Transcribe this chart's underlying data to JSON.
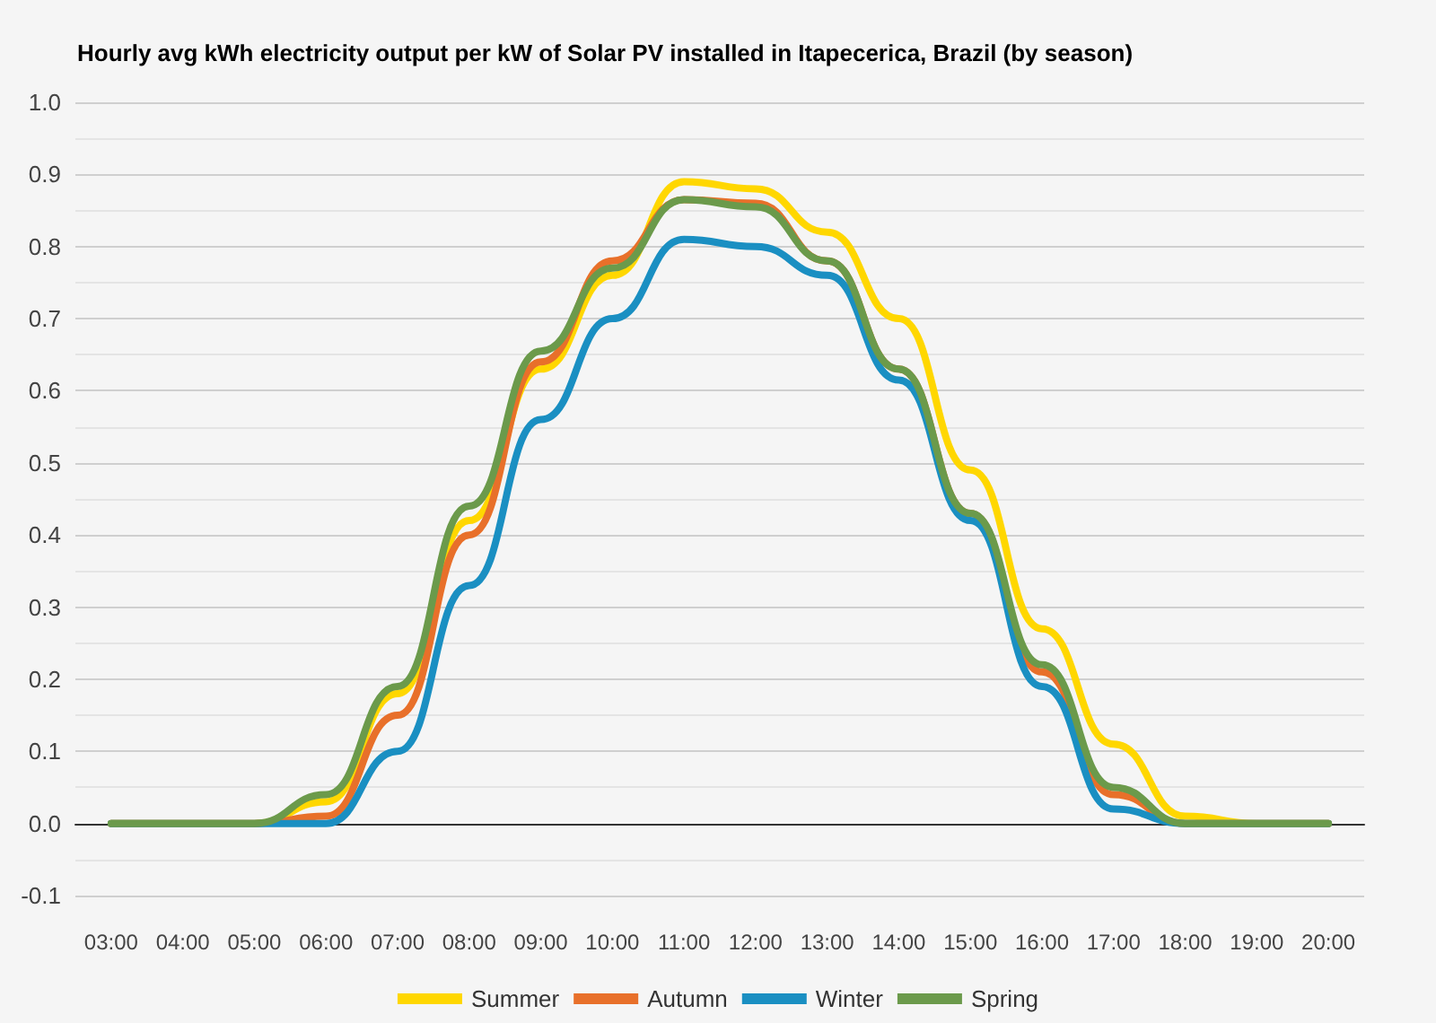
{
  "chart_data": {
    "type": "line",
    "title": "Hourly avg kWh electricity output per kW of Solar PV installed in Itapecerica, Brazil (by season)",
    "categories": [
      "03:00",
      "04:00",
      "05:00",
      "06:00",
      "07:00",
      "08:00",
      "09:00",
      "10:00",
      "11:00",
      "12:00",
      "13:00",
      "14:00",
      "15:00",
      "16:00",
      "17:00",
      "18:00",
      "19:00",
      "20:00"
    ],
    "series": [
      {
        "name": "Summer",
        "color": "#ffd700",
        "values": [
          0,
          0,
          0,
          0.03,
          0.18,
          0.42,
          0.63,
          0.76,
          0.89,
          0.88,
          0.82,
          0.7,
          0.49,
          0.27,
          0.11,
          0.01,
          0,
          0
        ]
      },
      {
        "name": "Autumn",
        "color": "#e8702a",
        "values": [
          0,
          0,
          0,
          0.01,
          0.15,
          0.4,
          0.64,
          0.78,
          0.865,
          0.86,
          0.78,
          0.63,
          0.43,
          0.21,
          0.04,
          0,
          0,
          0
        ]
      },
      {
        "name": "Winter",
        "color": "#1a8fc2",
        "values": [
          0,
          0,
          0,
          0,
          0.1,
          0.33,
          0.56,
          0.7,
          0.81,
          0.8,
          0.76,
          0.615,
          0.42,
          0.19,
          0.02,
          0,
          0,
          0
        ]
      },
      {
        "name": "Spring",
        "color": "#6b9a4b",
        "values": [
          0,
          0,
          0,
          0.04,
          0.19,
          0.44,
          0.655,
          0.77,
          0.865,
          0.855,
          0.78,
          0.63,
          0.43,
          0.22,
          0.05,
          0,
          0,
          0
        ]
      }
    ],
    "ylim": [
      -0.1,
      1.0
    ],
    "yticks": [
      {
        "value": -0.1,
        "label": "-0.1"
      },
      {
        "value": 0,
        "label": "0.0"
      },
      {
        "value": 0.1,
        "label": "0.1"
      },
      {
        "value": 0.2,
        "label": "0.2"
      },
      {
        "value": 0.3,
        "label": "0.3"
      },
      {
        "value": 0.4,
        "label": "0.4"
      },
      {
        "value": 0.5,
        "label": "0.5"
      },
      {
        "value": 0.6,
        "label": "0.6"
      },
      {
        "value": 0.7,
        "label": "0.7"
      },
      {
        "value": 0.8,
        "label": "0.8"
      },
      {
        "value": 0.9,
        "label": "0.9"
      },
      {
        "value": 1.0,
        "label": "1.0"
      }
    ],
    "grid": "y",
    "legend": "bottom",
    "marker": "none",
    "line_style": "solid"
  }
}
